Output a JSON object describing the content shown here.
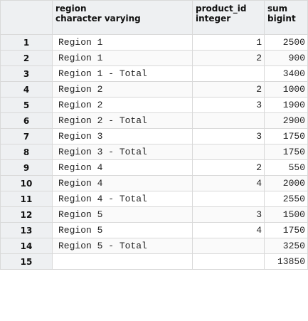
{
  "columns": [
    {
      "name": "region",
      "type": "character varying"
    },
    {
      "name": "product_id",
      "type": "integer"
    },
    {
      "name": "sum",
      "type": "bigint"
    }
  ],
  "rows": [
    {
      "n": "1",
      "region": "Region 1",
      "product_id": "1",
      "sum": "2500"
    },
    {
      "n": "2",
      "region": "Region 1",
      "product_id": "2",
      "sum": "900"
    },
    {
      "n": "3",
      "region": "Region 1 - Total",
      "product_id": "",
      "sum": "3400"
    },
    {
      "n": "4",
      "region": "Region 2",
      "product_id": "2",
      "sum": "1000"
    },
    {
      "n": "5",
      "region": "Region 2",
      "product_id": "3",
      "sum": "1900"
    },
    {
      "n": "6",
      "region": "Region 2 - Total",
      "product_id": "",
      "sum": "2900"
    },
    {
      "n": "7",
      "region": "Region 3",
      "product_id": "3",
      "sum": "1750"
    },
    {
      "n": "8",
      "region": "Region 3 - Total",
      "product_id": "",
      "sum": "1750"
    },
    {
      "n": "9",
      "region": "Region 4",
      "product_id": "2",
      "sum": "550"
    },
    {
      "n": "10",
      "region": "Region 4",
      "product_id": "4",
      "sum": "2000"
    },
    {
      "n": "11",
      "region": "Region 4 - Total",
      "product_id": "",
      "sum": "2550"
    },
    {
      "n": "12",
      "region": "Region 5",
      "product_id": "3",
      "sum": "1500"
    },
    {
      "n": "13",
      "region": "Region 5",
      "product_id": "4",
      "sum": "1750"
    },
    {
      "n": "14",
      "region": "Region 5 - Total",
      "product_id": "",
      "sum": "3250"
    },
    {
      "n": "15",
      "region": "",
      "product_id": "",
      "sum": "13850"
    }
  ]
}
